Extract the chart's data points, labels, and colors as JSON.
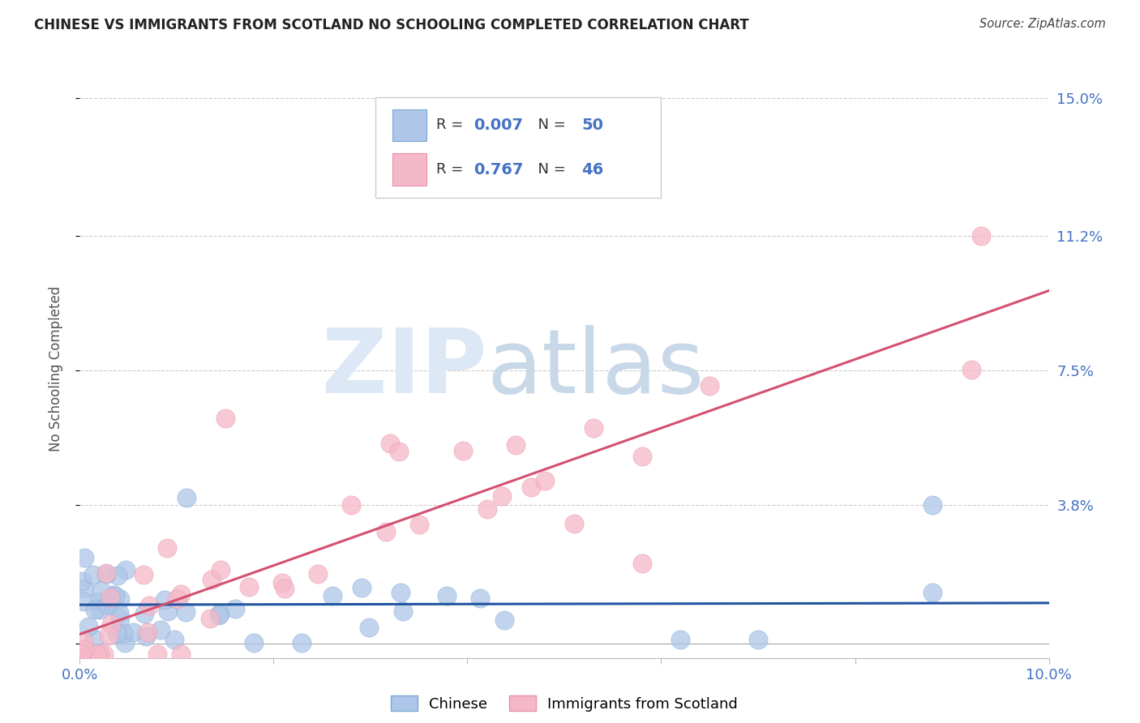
{
  "title": "CHINESE VS IMMIGRANTS FROM SCOTLAND NO SCHOOLING COMPLETED CORRELATION CHART",
  "source": "Source: ZipAtlas.com",
  "ylabel": "No Schooling Completed",
  "xlim": [
    0.0,
    0.1
  ],
  "ylim": [
    -0.004,
    0.155
  ],
  "xticks": [
    0.0,
    0.02,
    0.04,
    0.06,
    0.08,
    0.1
  ],
  "xticklabels": [
    "0.0%",
    "",
    "",
    "",
    "",
    "10.0%"
  ],
  "ytick_vals": [
    0.0,
    0.038,
    0.075,
    0.112,
    0.15
  ],
  "yticklabels": [
    "",
    "3.8%",
    "7.5%",
    "11.2%",
    "15.0%"
  ],
  "chinese_fill": "#aec6e8",
  "chinese_edge": "#7aa8d4",
  "scotland_fill": "#f5b8c8",
  "scotland_edge": "#e890a8",
  "chinese_line_color": "#2155a0",
  "scotland_line_color": "#d45070",
  "tick_color": "#4472c4",
  "axis_label_color": "#555555",
  "grid_color": "#cccccc",
  "background_color": "#ffffff",
  "legend_R_chinese": "0.007",
  "legend_N_chinese": "50",
  "legend_R_scotland": "0.767",
  "legend_N_scotland": "46",
  "watermark_color": "#dce8f5",
  "watermark_text1": "ZIP",
  "watermark_text2": "atlas"
}
